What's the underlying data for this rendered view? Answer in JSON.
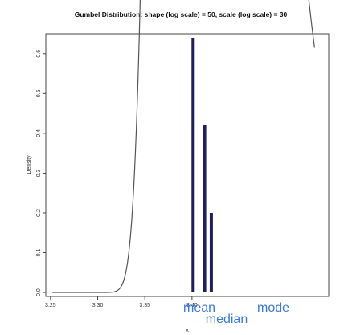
{
  "chart_data": {
    "type": "line",
    "title": "Gumbel Distribution: shape (log scale) = 50, scale (log scale) = 30",
    "xlabel": "x",
    "ylabel": "Density",
    "xlim": [
      3.245,
      3.545
    ],
    "ylim": [
      -0.01,
      0.65
    ],
    "x_ticks": [
      3.25,
      3.3,
      3.35,
      3.4
    ],
    "x_tick_labels": [
      "3.25",
      "3.30",
      "3.35",
      "3.40"
    ],
    "y_ticks": [
      0.0,
      0.1,
      0.2,
      0.3,
      0.4,
      0.5,
      0.6
    ],
    "y_tick_labels": [
      "0.0",
      "0.1",
      "0.2",
      "0.3",
      "0.4",
      "0.5",
      "0.6"
    ],
    "curve": {
      "mu": 3.4012,
      "beta": 0.0333,
      "x_from": 3.252,
      "x_to": 3.53,
      "color": "#555555"
    },
    "vertical_lines": [
      {
        "name": "mean",
        "x": 3.4205,
        "top": 0.2,
        "color": "#1f1f5c"
      },
      {
        "name": "median",
        "x": 3.4134,
        "top": 0.42,
        "color": "#1f1f5c"
      },
      {
        "name": "mode",
        "x": 3.4012,
        "top": 0.64,
        "color": "#1f1f5c"
      }
    ],
    "annotations": [
      {
        "text": "mean",
        "color": "#3a7bd5"
      },
      {
        "text": "median",
        "color": "#3a7bd5"
      },
      {
        "text": "mode",
        "color": "#3a7bd5"
      }
    ],
    "grid": false,
    "legend": "none"
  }
}
